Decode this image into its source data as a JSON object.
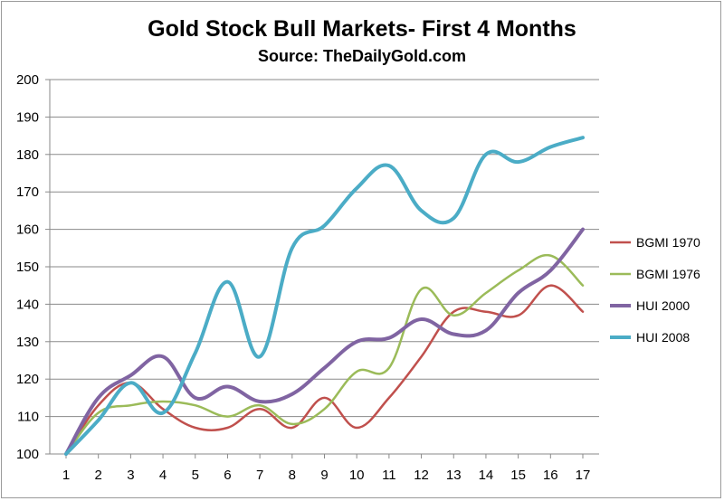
{
  "chart_data": {
    "type": "line",
    "title": "Gold Stock Bull Markets- First 4 Months",
    "subtitle": "Source: TheDailyGold.com",
    "xlabel": "",
    "ylabel": "",
    "x": [
      1,
      2,
      3,
      4,
      5,
      6,
      7,
      8,
      9,
      10,
      11,
      12,
      13,
      14,
      15,
      16,
      17
    ],
    "ylim": [
      100,
      200
    ],
    "yticks": [
      100,
      110,
      120,
      130,
      140,
      150,
      160,
      170,
      180,
      190,
      200
    ],
    "grid": "horizontal",
    "legend_position": "right",
    "series": [
      {
        "name": "BGMI 1970",
        "color": "#c0504d",
        "values": [
          100,
          113,
          119,
          112,
          107,
          107,
          112,
          107,
          115,
          107,
          115,
          126,
          138,
          138,
          137,
          145,
          138
        ]
      },
      {
        "name": "BGMI 1976",
        "color": "#9bbb59",
        "values": [
          100,
          111,
          113,
          114,
          113,
          110,
          113,
          108,
          112,
          122,
          123,
          144,
          137,
          143,
          149,
          153,
          145
        ]
      },
      {
        "name": "HUI 2000",
        "color": "#8064a2",
        "values": [
          100,
          115,
          121,
          126,
          115,
          118,
          114,
          116,
          123,
          130,
          131,
          136,
          132,
          133,
          143,
          149,
          160
        ]
      },
      {
        "name": "HUI 2008",
        "color": "#4bacc6",
        "values": [
          100,
          109,
          119,
          111,
          127,
          146,
          126,
          155,
          161,
          171,
          177,
          165,
          163,
          180,
          178,
          182,
          184.5
        ]
      }
    ]
  }
}
